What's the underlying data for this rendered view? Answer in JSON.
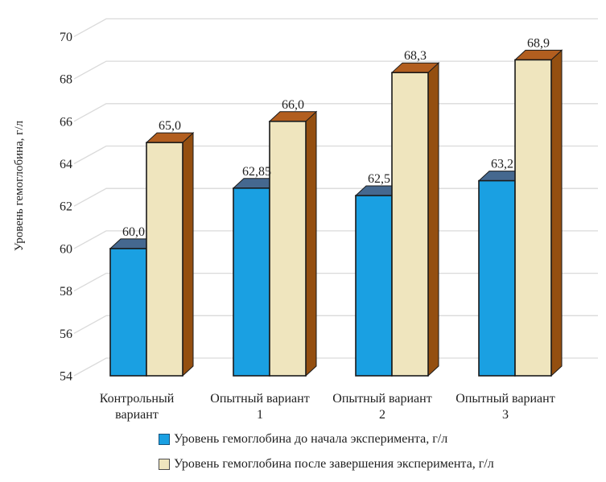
{
  "chart_data": {
    "type": "bar",
    "title": "",
    "ylabel": "Уровень гемоглобина, г/л",
    "xlabel": "",
    "ylim": [
      54,
      70
    ],
    "yticks": [
      54,
      56,
      58,
      60,
      62,
      64,
      66,
      68,
      70
    ],
    "grid": true,
    "legend_position": "bottom-left",
    "categories": [
      "Контрольный вариант",
      "Опытный вариант 1",
      "Опытный вариант 2",
      "Опытный вариант 3"
    ],
    "category_lines": [
      [
        "Контрольный",
        "вариант"
      ],
      [
        "Опытный вариант",
        "1"
      ],
      [
        "Опытный вариант",
        "2"
      ],
      [
        "Опытный вариант",
        "3"
      ]
    ],
    "series": [
      {
        "name": "Уровень гемоглобина до начала эксперимента, г/л",
        "values": [
          60.0,
          62.85,
          62.5,
          63.2
        ],
        "labels": [
          "60,0",
          "62,85",
          "62,5",
          "63,2"
        ],
        "color": "#1AA0E2",
        "top_color": "#45688F",
        "side_color": "#2E5E86",
        "swatch_border": "#17547E"
      },
      {
        "name": "Уровень гемоглобина после завершения эксперимента, г/л",
        "values": [
          65.0,
          66.0,
          68.3,
          68.9
        ],
        "labels": [
          "65,0",
          "66,0",
          "68,3",
          "68,9"
        ],
        "color": "#EFE5BE",
        "top_color": "#B25E1F",
        "side_color": "#944F10",
        "swatch_border": "#4D4D4D"
      }
    ]
  },
  "colors": {
    "gridline": "#DADADA",
    "text": "#1F1F1F",
    "bar_border": "#1A1A1A",
    "background": "#FFFFFF"
  }
}
